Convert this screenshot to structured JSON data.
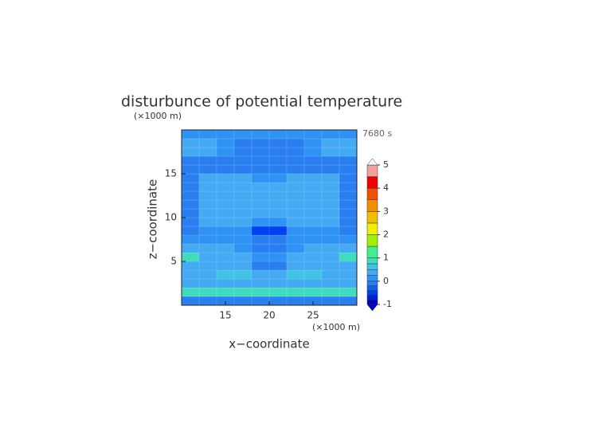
{
  "chart_data": {
    "type": "contour",
    "title": "disturbunce of potential temperature",
    "subtitle": "(×1000 m)",
    "time_label": "7680 s",
    "x_unit": "(×1000 m)",
    "xlabel": "x−coordinate",
    "ylabel": "z−coordinate",
    "xlim": [
      10,
      30
    ],
    "ylim": [
      0,
      20
    ],
    "xticks": [
      15,
      20,
      25
    ],
    "yticks": [
      5,
      10,
      15
    ],
    "x": [
      11,
      13,
      15,
      17,
      19,
      21,
      23,
      25,
      27,
      29
    ],
    "y": [
      0.5,
      1.5,
      2.5,
      3.5,
      4.5,
      5.5,
      6.5,
      7.5,
      8.5,
      9.5,
      10.5,
      11.5,
      12.5,
      13.5,
      14.5,
      15.5,
      16.5,
      17.5,
      18.5,
      19.5
    ],
    "values": [
      [
        -0.1,
        -0.1,
        -0.1,
        -0.1,
        -0.1,
        -0.1,
        -0.1,
        -0.1,
        -0.1,
        -0.1
      ],
      [
        0.9,
        0.9,
        0.9,
        0.9,
        0.9,
        0.9,
        0.9,
        0.9,
        0.9,
        0.9
      ],
      [
        0.3,
        0.3,
        0.3,
        0.3,
        0.3,
        0.3,
        0.3,
        0.3,
        0.3,
        0.3
      ],
      [
        0.3,
        0.3,
        0.6,
        0.6,
        0.3,
        0.3,
        0.6,
        0.6,
        0.3,
        0.3
      ],
      [
        0.3,
        0.3,
        0.3,
        0.3,
        -0.1,
        -0.1,
        0.3,
        0.3,
        0.3,
        0.3
      ],
      [
        0.8,
        0.3,
        0.3,
        0.3,
        0.1,
        0.1,
        0.3,
        0.3,
        0.3,
        0.8
      ],
      [
        0.3,
        0.3,
        0.3,
        0.1,
        -0.1,
        -0.1,
        0.1,
        0.3,
        0.3,
        0.3
      ],
      [
        0.1,
        0.1,
        0.1,
        0.1,
        -0.1,
        -0.1,
        0.1,
        0.1,
        0.1,
        0.1
      ],
      [
        -0.1,
        0.1,
        0.1,
        0.1,
        -0.5,
        -0.5,
        0.1,
        0.1,
        0.1,
        -0.1
      ],
      [
        -0.1,
        0.3,
        0.3,
        0.3,
        0.1,
        0.1,
        0.3,
        0.3,
        0.3,
        -0.1
      ],
      [
        -0.1,
        0.3,
        0.3,
        0.3,
        0.3,
        0.3,
        0.3,
        0.3,
        0.3,
        -0.1
      ],
      [
        -0.1,
        0.3,
        0.3,
        0.3,
        0.3,
        0.3,
        0.3,
        0.3,
        0.3,
        -0.1
      ],
      [
        -0.1,
        0.3,
        0.3,
        0.3,
        0.3,
        0.3,
        0.3,
        0.3,
        0.3,
        -0.1
      ],
      [
        -0.1,
        0.3,
        0.3,
        0.3,
        0.3,
        0.3,
        0.3,
        0.3,
        0.3,
        -0.1
      ],
      [
        -0.1,
        0.3,
        0.3,
        0.3,
        0.1,
        0.1,
        0.3,
        0.3,
        0.3,
        -0.1
      ],
      [
        -0.1,
        -0.1,
        -0.1,
        -0.1,
        -0.1,
        -0.1,
        -0.1,
        -0.1,
        -0.1,
        -0.1
      ],
      [
        -0.1,
        -0.1,
        -0.1,
        -0.1,
        -0.1,
        -0.1,
        -0.1,
        -0.1,
        -0.1,
        -0.1
      ],
      [
        0.3,
        0.3,
        0.1,
        -0.1,
        -0.1,
        -0.1,
        -0.1,
        0.1,
        0.3,
        0.3
      ],
      [
        0.3,
        0.3,
        0.1,
        -0.1,
        -0.1,
        -0.1,
        -0.1,
        0.1,
        0.3,
        0.3
      ],
      [
        0.1,
        0.1,
        0.1,
        0.1,
        0.1,
        0.1,
        0.1,
        0.1,
        0.1,
        0.1
      ]
    ],
    "colorbar": {
      "levels": [
        -1,
        -0.8,
        -0.6,
        -0.4,
        -0.2,
        0,
        0.25,
        0.5,
        0.75,
        1,
        1.5,
        2,
        2.5,
        3,
        3.5,
        4,
        4.5,
        5
      ],
      "colors": [
        "#0000c8",
        "#0020e0",
        "#0040f0",
        "#1060f0",
        "#2a7ff0",
        "#2e93f4",
        "#44aaf4",
        "#40c4e4",
        "#40dcc0",
        "#40f090",
        "#a0f000",
        "#f0f000",
        "#f0c000",
        "#f09000",
        "#f05000",
        "#f00000",
        "#f4a0a0"
      ],
      "ticks": [
        -1,
        0,
        1,
        2,
        3,
        4,
        5
      ]
    }
  }
}
